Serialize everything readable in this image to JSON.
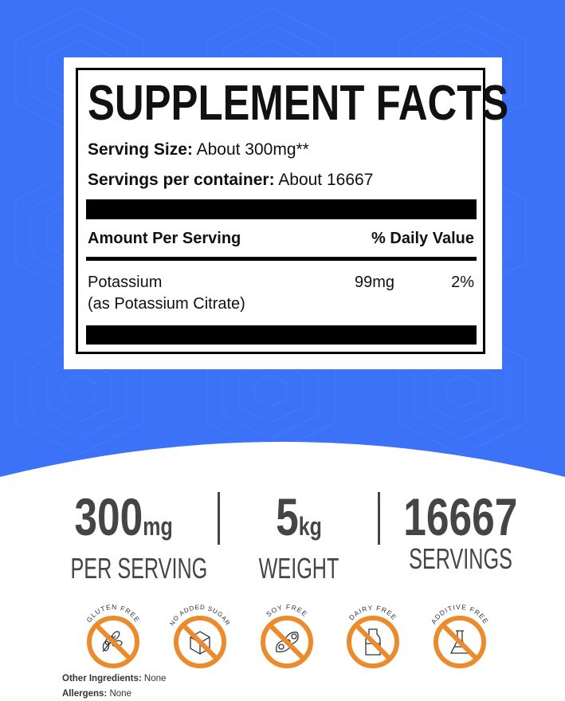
{
  "colors": {
    "background_blue": "#3b72f7",
    "badge_orange": "#ec8b2c",
    "text_dark": "#454545"
  },
  "label": {
    "title": "SUPPLEMENT FACTS",
    "serving_size_label": "Serving Size:",
    "serving_size_value": "About 300mg**",
    "servings_label": "Servings per container:",
    "servings_value": "About 16667",
    "amount_header": "Amount Per Serving",
    "dv_header": "% Daily Value",
    "rows": [
      {
        "name": "Potassium",
        "detail": "(as Potassium Citrate)",
        "amount": "99mg",
        "dv": "2%"
      }
    ]
  },
  "stats": [
    {
      "value": "300",
      "unit": "mg",
      "label": "PER SERVING"
    },
    {
      "value": "5",
      "unit": "kg",
      "label": "WEIGHT"
    },
    {
      "value": "16667",
      "unit": "",
      "label": "SERVINGS"
    }
  ],
  "badges": [
    {
      "label": "GLUTEN FREE",
      "icon": "wheat-icon"
    },
    {
      "label": "NO ADDED SUGAR",
      "icon": "sugar-cube-icon"
    },
    {
      "label": "SOY FREE",
      "icon": "soybean-icon"
    },
    {
      "label": "DAIRY FREE",
      "icon": "milk-bottle-icon"
    },
    {
      "label": "ADDITIVE FREE",
      "icon": "flask-icon"
    }
  ],
  "footer": {
    "other_ingredients_label": "Other Ingredients:",
    "other_ingredients_value": "None",
    "allergens_label": "Allergens:",
    "allergens_value": "None"
  }
}
